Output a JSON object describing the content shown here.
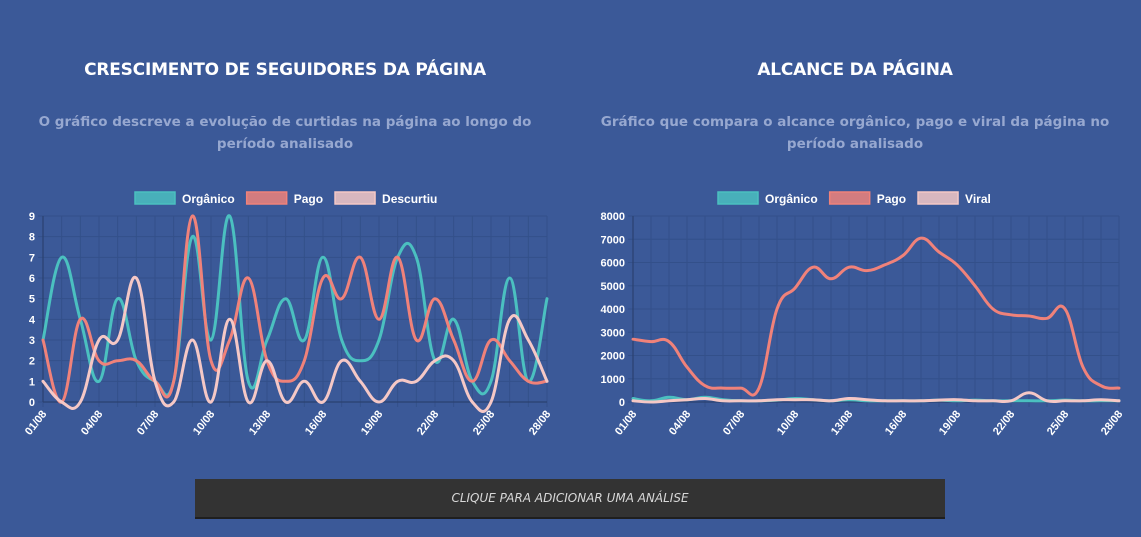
{
  "colors": {
    "background": "#3b5998",
    "grid": "#33508a",
    "organico": "#4bc0c0",
    "pago": "#f0827a",
    "descurtiu": "#f5c8c6",
    "cta_bg": "#333333"
  },
  "cta": {
    "label": "CLIQUE PARA ADICIONAR UMA ANÁLISE"
  },
  "chart_data": [
    {
      "type": "line",
      "title": "CRESCIMENTO DE SEGUIDORES DA PÁGINA",
      "subtitle": "O gráfico descreve a evolução de curtidas na página ao longo do período analisado",
      "legend_position": "top-center",
      "categories": [
        "01/08",
        "02/08",
        "03/08",
        "04/08",
        "05/08",
        "06/08",
        "07/08",
        "08/08",
        "09/08",
        "10/08",
        "11/08",
        "12/08",
        "13/08",
        "14/08",
        "15/08",
        "16/08",
        "17/08",
        "18/08",
        "19/08",
        "20/08",
        "21/08",
        "22/08",
        "23/08",
        "24/08",
        "25/08",
        "26/08",
        "27/08",
        "28/08"
      ],
      "tick_labels": [
        "01/08",
        "04/08",
        "07/08",
        "10/08",
        "13/08",
        "16/08",
        "19/08",
        "22/08",
        "25/08",
        "28/08"
      ],
      "ylim": [
        0,
        9
      ],
      "yticks": [
        "0",
        "1",
        "2",
        "3",
        "4",
        "5",
        "6",
        "7",
        "8",
        "9"
      ],
      "grid": true,
      "series": [
        {
          "name": "Orgânico",
          "color": "#4bc0c0",
          "values": [
            3,
            7,
            4,
            1,
            5,
            2,
            1,
            1,
            8,
            3,
            9,
            1,
            3,
            5,
            3,
            7,
            3,
            2,
            3,
            7,
            7,
            2,
            4,
            1,
            1,
            6,
            1,
            5
          ]
        },
        {
          "name": "Pago",
          "color": "#f0827a",
          "values": [
            3,
            0,
            4,
            2,
            2,
            2,
            1,
            1,
            9,
            2,
            3,
            6,
            2,
            1,
            2,
            6,
            5,
            7,
            4,
            7,
            3,
            5,
            3,
            1,
            3,
            2,
            1,
            1
          ]
        },
        {
          "name": "Descurtiu",
          "color": "#f5c8c6",
          "values": [
            1,
            0,
            0,
            3,
            3,
            6,
            1,
            0,
            3,
            0,
            4,
            0,
            2,
            0,
            1,
            0,
            2,
            1,
            0,
            1,
            1,
            2,
            2,
            0,
            0,
            4,
            3,
            1
          ]
        }
      ]
    },
    {
      "type": "line",
      "title": "ALCANCE DA PÁGINA",
      "subtitle": "Gráfico que compara o alcance orgânico, pago e viral da página no período analisado",
      "legend_position": "top-center",
      "categories": [
        "01/08",
        "02/08",
        "03/08",
        "04/08",
        "05/08",
        "06/08",
        "07/08",
        "08/08",
        "09/08",
        "10/08",
        "11/08",
        "12/08",
        "13/08",
        "14/08",
        "15/08",
        "16/08",
        "17/08",
        "18/08",
        "19/08",
        "20/08",
        "21/08",
        "22/08",
        "23/08",
        "24/08",
        "25/08",
        "26/08",
        "27/08",
        "28/08"
      ],
      "tick_labels": [
        "01/08",
        "04/08",
        "07/08",
        "10/08",
        "13/08",
        "16/08",
        "19/08",
        "22/08",
        "25/08",
        "28/08"
      ],
      "ylim": [
        0,
        8000
      ],
      "yticks": [
        "0",
        "1000",
        "2000",
        "3000",
        "4000",
        "5000",
        "6000",
        "7000",
        "8000"
      ],
      "grid": true,
      "series": [
        {
          "name": "Orgânico",
          "color": "#4bc0c0",
          "values": [
            150,
            50,
            200,
            100,
            200,
            100,
            50,
            50,
            80,
            150,
            100,
            50,
            100,
            50,
            50,
            50,
            50,
            80,
            50,
            80,
            50,
            50,
            50,
            50,
            80,
            50,
            50,
            50
          ]
        },
        {
          "name": "Pago",
          "color": "#f0827a",
          "values": [
            2700,
            2600,
            2600,
            1500,
            700,
            600,
            600,
            600,
            4000,
            4900,
            5800,
            5300,
            5800,
            5650,
            5900,
            6300,
            7050,
            6450,
            5900,
            5000,
            4000,
            3750,
            3700,
            3600,
            4000,
            1500,
            700,
            600
          ]
        },
        {
          "name": "Viral",
          "color": "#f5c8c6",
          "values": [
            50,
            0,
            50,
            100,
            150,
            50,
            50,
            50,
            100,
            100,
            100,
            50,
            150,
            100,
            50,
            50,
            50,
            80,
            100,
            50,
            50,
            50,
            400,
            50,
            50,
            50,
            100,
            50
          ]
        }
      ]
    }
  ]
}
